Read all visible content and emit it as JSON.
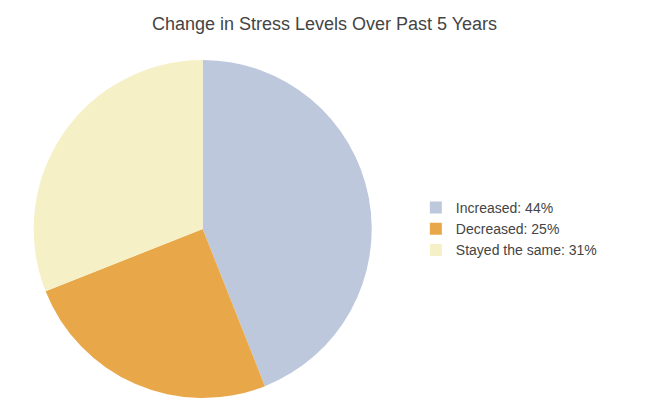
{
  "chart_data": {
    "type": "pie",
    "title": "Change in Stress Levels Over Past 5 Years",
    "categories": [
      "Increased: 44%",
      "Decreased: 25%",
      "Stayed the same: 31%"
    ],
    "values": [
      44,
      25,
      31
    ],
    "colors": [
      "#bec8dc",
      "#e8a84a",
      "#f5f0c5"
    ],
    "legend": "right"
  }
}
